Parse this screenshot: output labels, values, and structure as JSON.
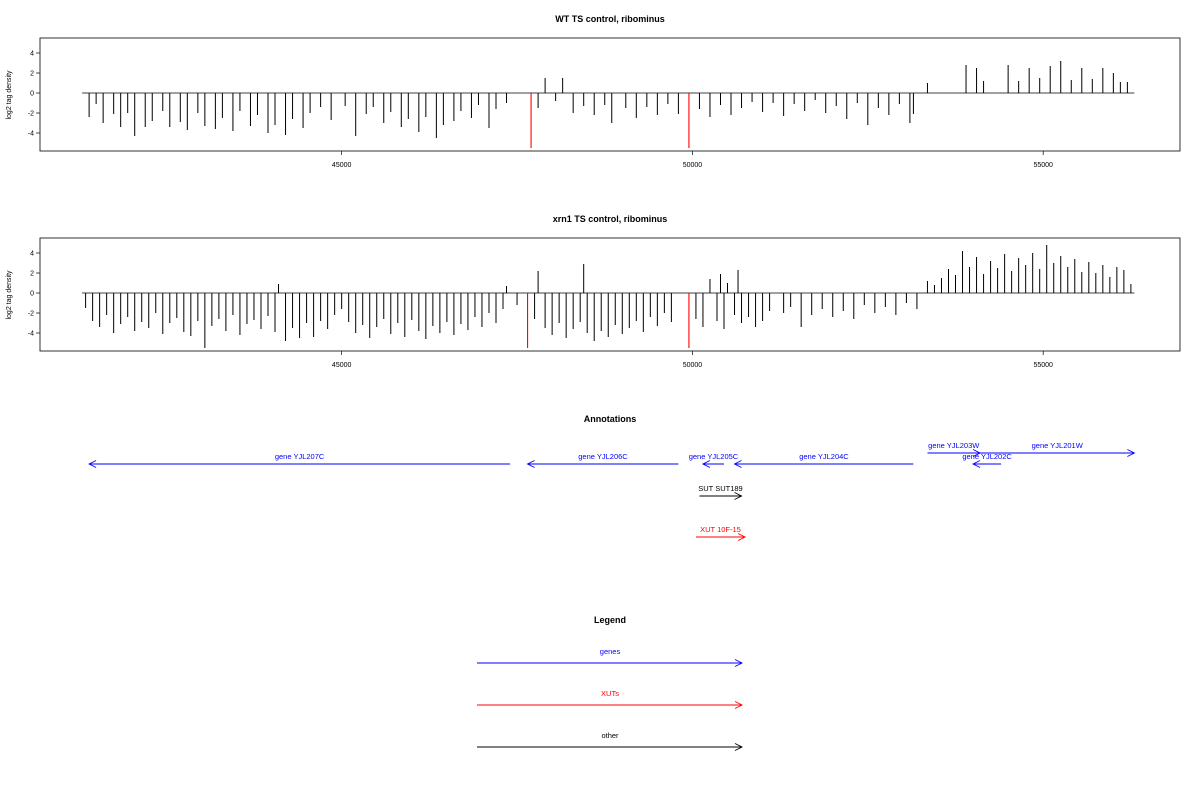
{
  "chart_data": [
    {
      "type": "bar",
      "title": "WT TS control, ribominus",
      "ylabel": "log2 tag density",
      "xlim": [
        40700,
        56950
      ],
      "ylim": [
        -5.8,
        5.5
      ],
      "xticks": [
        45000,
        50000,
        55000
      ],
      "xtick_labels": [
        "45000",
        "50000",
        "55000"
      ],
      "yticks": [
        4,
        2,
        0,
        -2,
        -4
      ],
      "ytick_labels": [
        "4",
        "2",
        "0",
        "-2",
        "-4"
      ],
      "baseline_range": [
        41300,
        56300
      ],
      "grid": false,
      "bars": [
        {
          "x": 41400,
          "y": -2.4
        },
        {
          "x": 41500,
          "y": -1.1
        },
        {
          "x": 41600,
          "y": -3.0
        },
        {
          "x": 41750,
          "y": -2.1
        },
        {
          "x": 41850,
          "y": -3.4
        },
        {
          "x": 41950,
          "y": -2.0
        },
        {
          "x": 42050,
          "y": -4.3
        },
        {
          "x": 42200,
          "y": -3.4
        },
        {
          "x": 42300,
          "y": -2.8
        },
        {
          "x": 42450,
          "y": -1.8
        },
        {
          "x": 42550,
          "y": -3.4
        },
        {
          "x": 42700,
          "y": -2.9
        },
        {
          "x": 42800,
          "y": -3.7
        },
        {
          "x": 42950,
          "y": -2.0
        },
        {
          "x": 43050,
          "y": -3.3
        },
        {
          "x": 43200,
          "y": -3.6
        },
        {
          "x": 43300,
          "y": -2.5
        },
        {
          "x": 43450,
          "y": -3.8
        },
        {
          "x": 43550,
          "y": -1.8
        },
        {
          "x": 43700,
          "y": -3.3
        },
        {
          "x": 43800,
          "y": -2.2
        },
        {
          "x": 43950,
          "y": -4.0
        },
        {
          "x": 44050,
          "y": -3.2
        },
        {
          "x": 44200,
          "y": -4.2
        },
        {
          "x": 44300,
          "y": -2.6
        },
        {
          "x": 44450,
          "y": -3.5
        },
        {
          "x": 44550,
          "y": -2.0
        },
        {
          "x": 44700,
          "y": -1.4
        },
        {
          "x": 44850,
          "y": -2.7
        },
        {
          "x": 45050,
          "y": -1.3
        },
        {
          "x": 45200,
          "y": -4.3
        },
        {
          "x": 45350,
          "y": -2.1
        },
        {
          "x": 45450,
          "y": -1.4
        },
        {
          "x": 45600,
          "y": -3.0
        },
        {
          "x": 45700,
          "y": -1.9
        },
        {
          "x": 45850,
          "y": -3.4
        },
        {
          "x": 45950,
          "y": -2.6
        },
        {
          "x": 46100,
          "y": -3.9
        },
        {
          "x": 46200,
          "y": -2.4
        },
        {
          "x": 46350,
          "y": -4.5
        },
        {
          "x": 46450,
          "y": -3.2
        },
        {
          "x": 46600,
          "y": -2.8
        },
        {
          "x": 46700,
          "y": -1.8
        },
        {
          "x": 46850,
          "y": -2.5
        },
        {
          "x": 46950,
          "y": -1.2
        },
        {
          "x": 47100,
          "y": -3.5
        },
        {
          "x": 47200,
          "y": -1.6
        },
        {
          "x": 47350,
          "y": -1.0
        },
        {
          "x": 47700,
          "y": -5.5,
          "highlight": true
        },
        {
          "x": 47800,
          "y": -1.5
        },
        {
          "x": 47900,
          "y": 1.5
        },
        {
          "x": 48050,
          "y": -0.8
        },
        {
          "x": 48150,
          "y": 1.5
        },
        {
          "x": 48300,
          "y": -2.0
        },
        {
          "x": 48450,
          "y": -1.3
        },
        {
          "x": 48600,
          "y": -2.2
        },
        {
          "x": 48750,
          "y": -1.2
        },
        {
          "x": 48850,
          "y": -3.0
        },
        {
          "x": 49050,
          "y": -1.5
        },
        {
          "x": 49200,
          "y": -2.5
        },
        {
          "x": 49350,
          "y": -1.4
        },
        {
          "x": 49500,
          "y": -2.2
        },
        {
          "x": 49650,
          "y": -1.1
        },
        {
          "x": 49800,
          "y": -2.1
        },
        {
          "x": 49950,
          "y": -5.5,
          "highlight": true
        },
        {
          "x": 50100,
          "y": -1.6
        },
        {
          "x": 50250,
          "y": -2.4
        },
        {
          "x": 50400,
          "y": -1.2
        },
        {
          "x": 50550,
          "y": -2.2
        },
        {
          "x": 50700,
          "y": -1.5
        },
        {
          "x": 50850,
          "y": -0.9
        },
        {
          "x": 51000,
          "y": -1.9
        },
        {
          "x": 51150,
          "y": -1.0
        },
        {
          "x": 51300,
          "y": -2.3
        },
        {
          "x": 51450,
          "y": -1.1
        },
        {
          "x": 51600,
          "y": -1.8
        },
        {
          "x": 51750,
          "y": -0.7
        },
        {
          "x": 51900,
          "y": -2.0
        },
        {
          "x": 52050,
          "y": -1.3
        },
        {
          "x": 52200,
          "y": -2.6
        },
        {
          "x": 52350,
          "y": -1.0
        },
        {
          "x": 52500,
          "y": -3.2
        },
        {
          "x": 52650,
          "y": -1.5
        },
        {
          "x": 52800,
          "y": -2.2
        },
        {
          "x": 52950,
          "y": -1.1
        },
        {
          "x": 53100,
          "y": -3.0
        },
        {
          "x": 53150,
          "y": -2.1
        },
        {
          "x": 53350,
          "y": 1.0
        },
        {
          "x": 53900,
          "y": 2.8
        },
        {
          "x": 54050,
          "y": 2.5
        },
        {
          "x": 54150,
          "y": 1.2
        },
        {
          "x": 54500,
          "y": 2.8
        },
        {
          "x": 54650,
          "y": 1.2
        },
        {
          "x": 54800,
          "y": 2.5
        },
        {
          "x": 54950,
          "y": 1.5
        },
        {
          "x": 55100,
          "y": 2.7
        },
        {
          "x": 55250,
          "y": 3.2
        },
        {
          "x": 55400,
          "y": 1.3
        },
        {
          "x": 55550,
          "y": 2.5
        },
        {
          "x": 55700,
          "y": 1.4
        },
        {
          "x": 55850,
          "y": 2.5
        },
        {
          "x": 56000,
          "y": 2.0
        },
        {
          "x": 56100,
          "y": 1.1
        },
        {
          "x": 56200,
          "y": 1.1
        }
      ]
    },
    {
      "type": "bar",
      "title": "xrn1 TS control, ribominus",
      "ylabel": "log2 tag density",
      "xlim": [
        40700,
        56950
      ],
      "ylim": [
        -5.8,
        5.5
      ],
      "xticks": [
        45000,
        50000,
        55000
      ],
      "xtick_labels": [
        "45000",
        "50000",
        "55000"
      ],
      "yticks": [
        4,
        2,
        0,
        -2,
        -4
      ],
      "ytick_labels": [
        "4",
        "2",
        "0",
        "-2",
        "-4"
      ],
      "baseline_range": [
        41300,
        56300
      ],
      "grid": false,
      "bars": [
        {
          "x": 41350,
          "y": -1.5
        },
        {
          "x": 41450,
          "y": -2.8
        },
        {
          "x": 41550,
          "y": -3.4
        },
        {
          "x": 41650,
          "y": -2.2
        },
        {
          "x": 41750,
          "y": -4.0
        },
        {
          "x": 41850,
          "y": -3.1
        },
        {
          "x": 41950,
          "y": -2.4
        },
        {
          "x": 42050,
          "y": -3.8
        },
        {
          "x": 42150,
          "y": -2.9
        },
        {
          "x": 42250,
          "y": -3.5
        },
        {
          "x": 42350,
          "y": -2.0
        },
        {
          "x": 42450,
          "y": -4.1
        },
        {
          "x": 42550,
          "y": -3.0
        },
        {
          "x": 42650,
          "y": -2.5
        },
        {
          "x": 42750,
          "y": -3.9
        },
        {
          "x": 42850,
          "y": -4.3
        },
        {
          "x": 42950,
          "y": -2.8
        },
        {
          "x": 43050,
          "y": -5.5
        },
        {
          "x": 43150,
          "y": -3.3
        },
        {
          "x": 43250,
          "y": -2.6
        },
        {
          "x": 43350,
          "y": -3.8
        },
        {
          "x": 43450,
          "y": -2.2
        },
        {
          "x": 43550,
          "y": -4.2
        },
        {
          "x": 43650,
          "y": -3.1
        },
        {
          "x": 43750,
          "y": -2.7
        },
        {
          "x": 43850,
          "y": -3.6
        },
        {
          "x": 43950,
          "y": -2.3
        },
        {
          "x": 44050,
          "y": -3.9
        },
        {
          "x": 44100,
          "y": 0.9
        },
        {
          "x": 44200,
          "y": -4.8
        },
        {
          "x": 44300,
          "y": -3.5
        },
        {
          "x": 44400,
          "y": -4.5
        },
        {
          "x": 44500,
          "y": -3.0
        },
        {
          "x": 44600,
          "y": -4.4
        },
        {
          "x": 44700,
          "y": -2.8
        },
        {
          "x": 44800,
          "y": -3.6
        },
        {
          "x": 44900,
          "y": -2.2
        },
        {
          "x": 45000,
          "y": -1.6
        },
        {
          "x": 45100,
          "y": -2.9
        },
        {
          "x": 45200,
          "y": -4.0
        },
        {
          "x": 45300,
          "y": -3.2
        },
        {
          "x": 45400,
          "y": -4.5
        },
        {
          "x": 45500,
          "y": -3.4
        },
        {
          "x": 45600,
          "y": -2.6
        },
        {
          "x": 45700,
          "y": -4.1
        },
        {
          "x": 45800,
          "y": -3.0
        },
        {
          "x": 45900,
          "y": -4.4
        },
        {
          "x": 46000,
          "y": -2.7
        },
        {
          "x": 46100,
          "y": -3.8
        },
        {
          "x": 46200,
          "y": -4.6
        },
        {
          "x": 46300,
          "y": -3.3
        },
        {
          "x": 46400,
          "y": -4.0
        },
        {
          "x": 46500,
          "y": -2.9
        },
        {
          "x": 46600,
          "y": -4.2
        },
        {
          "x": 46700,
          "y": -3.1
        },
        {
          "x": 46800,
          "y": -3.7
        },
        {
          "x": 46900,
          "y": -2.4
        },
        {
          "x": 47000,
          "y": -3.4
        },
        {
          "x": 47100,
          "y": -2.0
        },
        {
          "x": 47200,
          "y": -3.0
        },
        {
          "x": 47300,
          "y": -1.6
        },
        {
          "x": 47350,
          "y": 0.7
        },
        {
          "x": 47500,
          "y": -1.2
        },
        {
          "x": 47650,
          "y": -5.5,
          "highlight": true
        },
        {
          "x": 47750,
          "y": -2.6
        },
        {
          "x": 47800,
          "y": 2.2
        },
        {
          "x": 47900,
          "y": -3.5
        },
        {
          "x": 48000,
          "y": -4.2
        },
        {
          "x": 48100,
          "y": -3.0
        },
        {
          "x": 48200,
          "y": -4.5
        },
        {
          "x": 48300,
          "y": -3.6
        },
        {
          "x": 48400,
          "y": -2.9
        },
        {
          "x": 48450,
          "y": 2.9
        },
        {
          "x": 48500,
          "y": -4.0
        },
        {
          "x": 48600,
          "y": -4.8
        },
        {
          "x": 48700,
          "y": -3.8
        },
        {
          "x": 48800,
          "y": -4.4
        },
        {
          "x": 48900,
          "y": -3.2
        },
        {
          "x": 49000,
          "y": -4.1
        },
        {
          "x": 49100,
          "y": -3.5
        },
        {
          "x": 49200,
          "y": -2.8
        },
        {
          "x": 49300,
          "y": -3.9
        },
        {
          "x": 49400,
          "y": -2.4
        },
        {
          "x": 49500,
          "y": -3.3
        },
        {
          "x": 49600,
          "y": -2.0
        },
        {
          "x": 49700,
          "y": -2.9
        },
        {
          "x": 49950,
          "y": -5.5,
          "highlight": true
        },
        {
          "x": 50050,
          "y": -2.6
        },
        {
          "x": 50150,
          "y": -3.4
        },
        {
          "x": 50250,
          "y": 1.4
        },
        {
          "x": 50350,
          "y": -2.8
        },
        {
          "x": 50400,
          "y": 1.9
        },
        {
          "x": 50450,
          "y": -3.6
        },
        {
          "x": 50500,
          "y": 1.0
        },
        {
          "x": 50600,
          "y": -2.2
        },
        {
          "x": 50650,
          "y": 2.3
        },
        {
          "x": 50700,
          "y": -3.0
        },
        {
          "x": 50800,
          "y": -2.4
        },
        {
          "x": 50900,
          "y": -3.4
        },
        {
          "x": 51000,
          "y": -2.8
        },
        {
          "x": 51100,
          "y": -1.8
        },
        {
          "x": 51300,
          "y": -2.0
        },
        {
          "x": 51400,
          "y": -1.4
        },
        {
          "x": 51550,
          "y": -3.4
        },
        {
          "x": 51700,
          "y": -2.2
        },
        {
          "x": 51850,
          "y": -1.6
        },
        {
          "x": 52000,
          "y": -2.4
        },
        {
          "x": 52150,
          "y": -1.8
        },
        {
          "x": 52300,
          "y": -2.6
        },
        {
          "x": 52450,
          "y": -1.2
        },
        {
          "x": 52600,
          "y": -2.0
        },
        {
          "x": 52750,
          "y": -1.4
        },
        {
          "x": 52900,
          "y": -2.2
        },
        {
          "x": 53050,
          "y": -1.0
        },
        {
          "x": 53200,
          "y": -1.6
        },
        {
          "x": 53350,
          "y": 1.2
        },
        {
          "x": 53450,
          "y": 0.8
        },
        {
          "x": 53550,
          "y": 1.5
        },
        {
          "x": 53650,
          "y": 2.4
        },
        {
          "x": 53750,
          "y": 1.8
        },
        {
          "x": 53850,
          "y": 4.2
        },
        {
          "x": 53950,
          "y": 2.6
        },
        {
          "x": 54050,
          "y": 3.6
        },
        {
          "x": 54150,
          "y": 1.9
        },
        {
          "x": 54250,
          "y": 3.2
        },
        {
          "x": 54350,
          "y": 2.5
        },
        {
          "x": 54450,
          "y": 3.9
        },
        {
          "x": 54550,
          "y": 2.2
        },
        {
          "x": 54650,
          "y": 3.5
        },
        {
          "x": 54750,
          "y": 2.8
        },
        {
          "x": 54850,
          "y": 4.0
        },
        {
          "x": 54950,
          "y": 2.4
        },
        {
          "x": 55050,
          "y": 4.8
        },
        {
          "x": 55150,
          "y": 3.0
        },
        {
          "x": 55250,
          "y": 3.7
        },
        {
          "x": 55350,
          "y": 2.6
        },
        {
          "x": 55450,
          "y": 3.4
        },
        {
          "x": 55550,
          "y": 2.1
        },
        {
          "x": 55650,
          "y": 3.1
        },
        {
          "x": 55750,
          "y": 2.0
        },
        {
          "x": 55850,
          "y": 2.8
        },
        {
          "x": 55950,
          "y": 1.6
        },
        {
          "x": 56050,
          "y": 2.6
        },
        {
          "x": 56150,
          "y": 2.3
        },
        {
          "x": 56250,
          "y": 0.9
        }
      ]
    }
  ],
  "annotations": {
    "title": "Annotations",
    "features": [
      {
        "label": "gene YJL207C",
        "kind": "gene",
        "start": 41400,
        "end": 47400,
        "strand": "-",
        "row": 1
      },
      {
        "label": "gene YJL206C",
        "kind": "gene",
        "start": 47650,
        "end": 49800,
        "strand": "-",
        "row": 1
      },
      {
        "label": "gene YJL205C",
        "kind": "gene",
        "start": 50150,
        "end": 50450,
        "strand": "-",
        "row": 1
      },
      {
        "label": "gene YJL204C",
        "kind": "gene",
        "start": 50600,
        "end": 53150,
        "strand": "-",
        "row": 1
      },
      {
        "label": "gene YJL203W",
        "kind": "gene",
        "start": 53350,
        "end": 54100,
        "strand": "+",
        "row": 0
      },
      {
        "label": "gene YJL202C",
        "kind": "gene",
        "start": 54000,
        "end": 54400,
        "strand": "-",
        "row": 1
      },
      {
        "label": "gene YJL201W",
        "kind": "gene",
        "start": 54100,
        "end": 56300,
        "strand": "+",
        "row": 0
      },
      {
        "label": "SUT SUT189",
        "kind": "other",
        "start": 50100,
        "end": 50700,
        "strand": "+",
        "row": 2
      },
      {
        "label": "XUT 10F-15",
        "kind": "xut",
        "start": 50050,
        "end": 50750,
        "strand": "+",
        "row": 3
      }
    ]
  },
  "legend": {
    "title": "Legend",
    "items": [
      {
        "label": "genes",
        "kind": "gene"
      },
      {
        "label": "XUTs",
        "kind": "xut"
      },
      {
        "label": "other",
        "kind": "other"
      }
    ]
  },
  "colors": {
    "gene": "#0000ff",
    "xut": "#ff0000",
    "other": "#000000",
    "bar": "#000000",
    "highlight": "#ff0000",
    "baseline": "#000000"
  }
}
